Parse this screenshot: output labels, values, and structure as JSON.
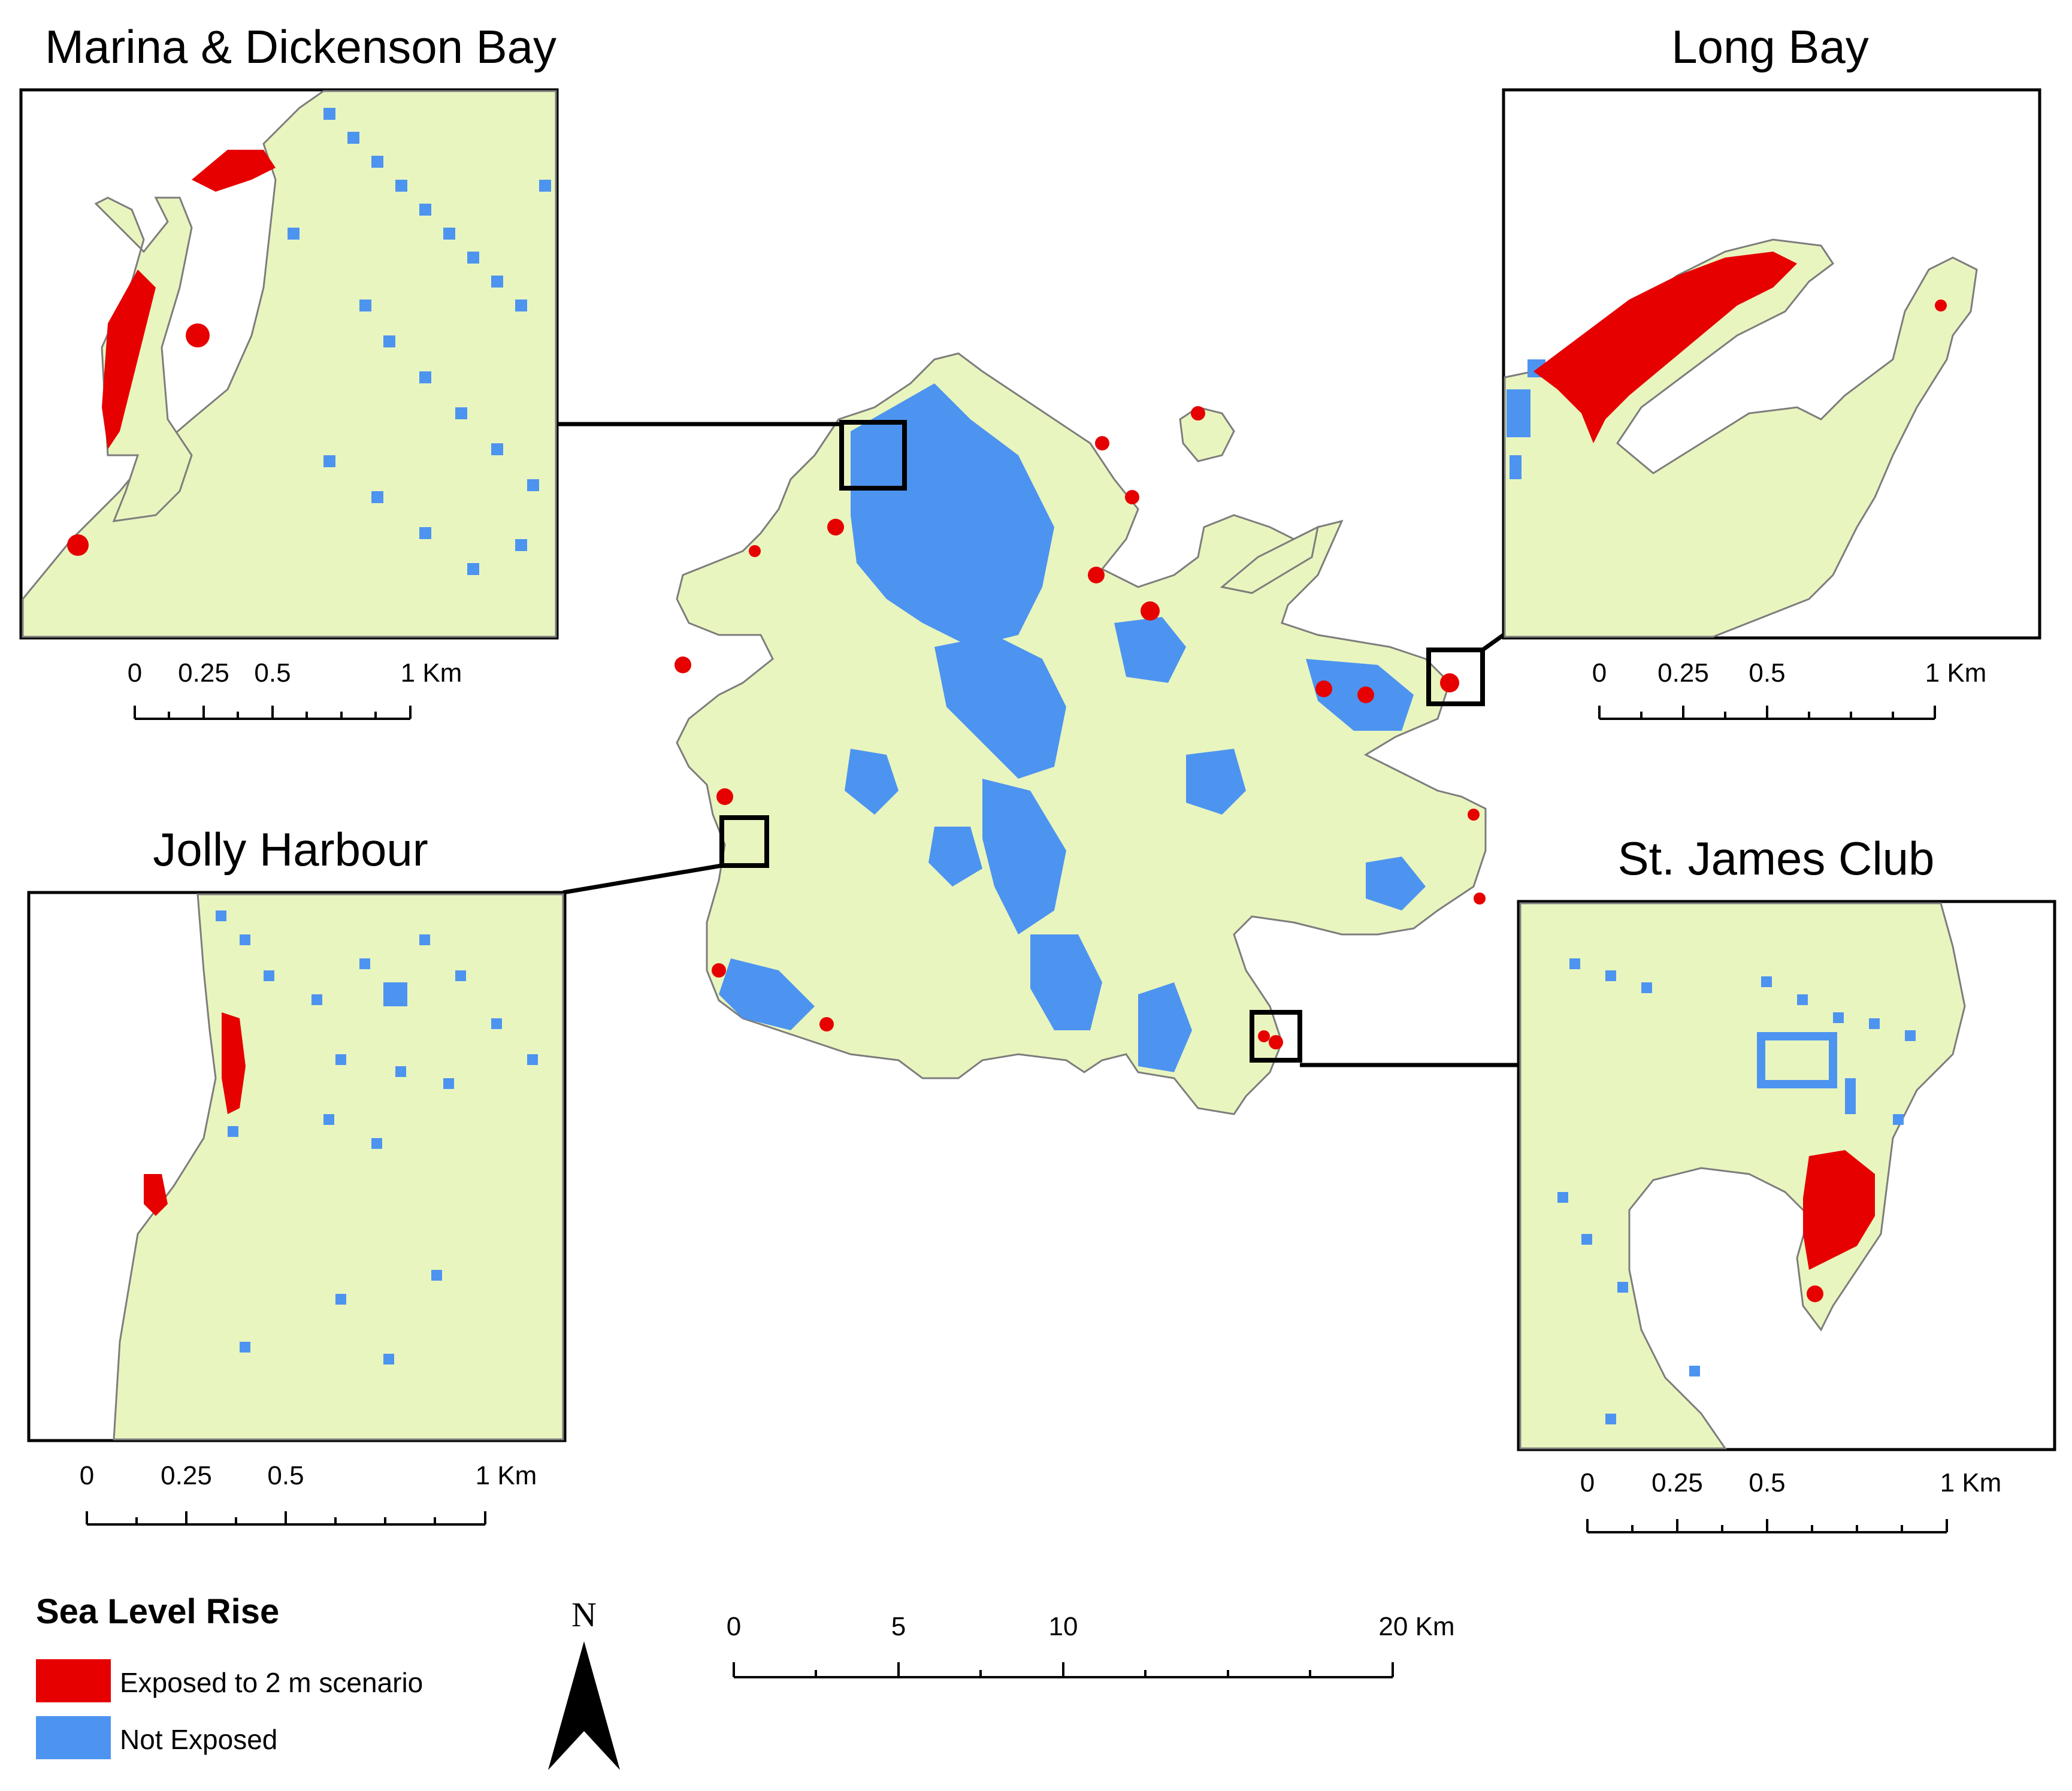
{
  "insets": {
    "marina": {
      "title": "Marina & Dickenson Bay",
      "ticks": [
        "0",
        "0.25",
        "0.5",
        "1 Km"
      ]
    },
    "longbay": {
      "title": "Long Bay",
      "ticks": [
        "0",
        "0.25",
        "0.5",
        "1 Km"
      ]
    },
    "jolly": {
      "title": "Jolly Harbour",
      "ticks": [
        "0",
        "0.25",
        "0.5",
        "1 Km"
      ]
    },
    "stjames": {
      "title": "St. James Club",
      "ticks": [
        "0",
        "0.25",
        "0.5",
        "1 Km"
      ]
    }
  },
  "legend": {
    "title": "Sea Level Rise",
    "items": [
      {
        "label": "Exposed to 2 m scenario",
        "color": "#e60000"
      },
      {
        "label": "Not Exposed",
        "color": "#4d94f0"
      }
    ]
  },
  "north_arrow": {
    "label": "N"
  },
  "main_scale": {
    "ticks": [
      "0",
      "5",
      "10",
      "20 Km"
    ]
  },
  "colors": {
    "land": "#e9f5bf",
    "exposed": "#e60000",
    "not_exposed": "#4d94f0",
    "outline": "#7d7d7d"
  }
}
